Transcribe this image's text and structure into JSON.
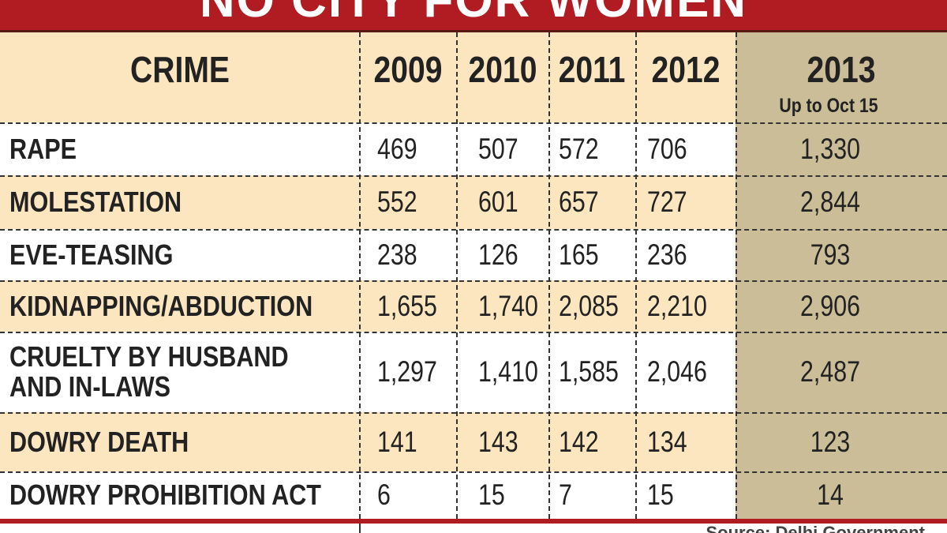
{
  "header": {
    "title": "NO CITY FOR WOMEN"
  },
  "table": {
    "columns": [
      "CRIME",
      "2009",
      "2010",
      "2011",
      "2012",
      "2013"
    ],
    "column_note": "Up to Oct 15",
    "rows": [
      [
        "RAPE",
        "469",
        "507",
        "572",
        "706",
        "1,330"
      ],
      [
        "MOLESTATION",
        "552",
        "601",
        "657",
        "727",
        "2,844"
      ],
      [
        "EVE-TEASING",
        "238",
        "126",
        "165",
        "236",
        "793"
      ],
      [
        "KIDNAPPING/ABDUCTION",
        "1,655",
        "1,740",
        "2,085",
        "2,210",
        "2,906"
      ],
      [
        "CRUELTY BY HUSBAND\nAND IN-LAWS",
        "1,297",
        "1,410",
        "1,585",
        "2,046",
        "2,487"
      ],
      [
        "DOWRY DEATH",
        "141",
        "143",
        "142",
        "134",
        "123"
      ],
      [
        "DOWRY PROHIBITION ACT",
        "6",
        "15",
        "7",
        "15",
        "14"
      ]
    ]
  },
  "footer": {
    "source": "Source: Delhi Government"
  }
}
